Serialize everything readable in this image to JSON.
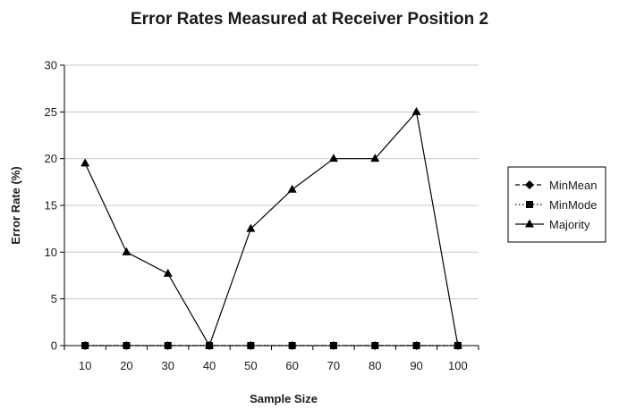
{
  "chart_data": {
    "type": "line",
    "title": "Error Rates Measured at Receiver Position 2",
    "xlabel": "Sample Size",
    "ylabel": "Error Rate (%)",
    "categories": [
      "10",
      "20",
      "30",
      "40",
      "50",
      "60",
      "70",
      "80",
      "90",
      "100"
    ],
    "ylim": [
      0,
      30
    ],
    "yticks": [
      "0",
      "5",
      "10",
      "15",
      "20",
      "25",
      "30"
    ],
    "grid": true,
    "legend_position": "right",
    "series": [
      {
        "name": "MinMean",
        "marker": "diamond",
        "line_style": "dashed",
        "color": "#000000",
        "values": [
          0,
          0,
          0,
          0,
          0,
          0,
          0,
          0,
          0,
          0
        ]
      },
      {
        "name": "MinMode",
        "marker": "square",
        "line_style": "dotted",
        "color": "#000000",
        "values": [
          0,
          0,
          0,
          0,
          0,
          0,
          0,
          0,
          0,
          0
        ]
      },
      {
        "name": "Majority",
        "marker": "triangle",
        "line_style": "solid",
        "color": "#000000",
        "values": [
          19.5,
          10,
          7.7,
          0,
          12.5,
          16.7,
          20,
          20,
          25,
          0
        ]
      }
    ]
  }
}
